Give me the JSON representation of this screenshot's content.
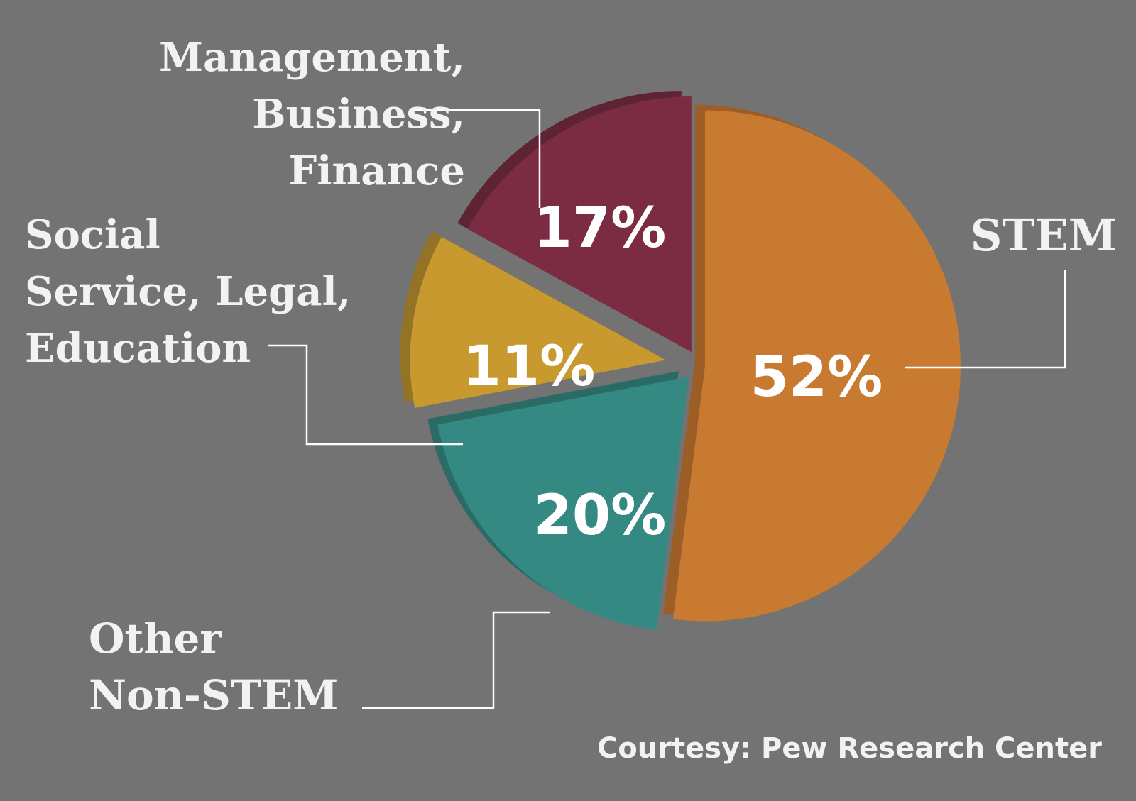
{
  "chart_data": {
    "type": "pie",
    "style": "3d-exploded",
    "slices": [
      {
        "label_lines": [
          "STEM"
        ],
        "value": 52,
        "value_label": "52%",
        "color": "#c87a30",
        "shade": "#9c5d26"
      },
      {
        "label_lines": [
          "Other",
          "Non-STEM"
        ],
        "value": 20,
        "value_label": "20%",
        "color": "#348a82",
        "shade": "#2a6b66"
      },
      {
        "label_lines": [
          "Social",
          "Service, Legal,",
          "Education"
        ],
        "value": 11,
        "value_label": "11%",
        "color": "#c8992e",
        "shade": "#957326"
      },
      {
        "label_lines": [
          "Management,",
          "Business,",
          "Finance"
        ],
        "value": 17,
        "value_label": "17%",
        "color": "#7b2b42",
        "shade": "#5e2433"
      }
    ],
    "legend": "none",
    "background": "#737373"
  },
  "source": "Courtesy: Pew Research Center"
}
